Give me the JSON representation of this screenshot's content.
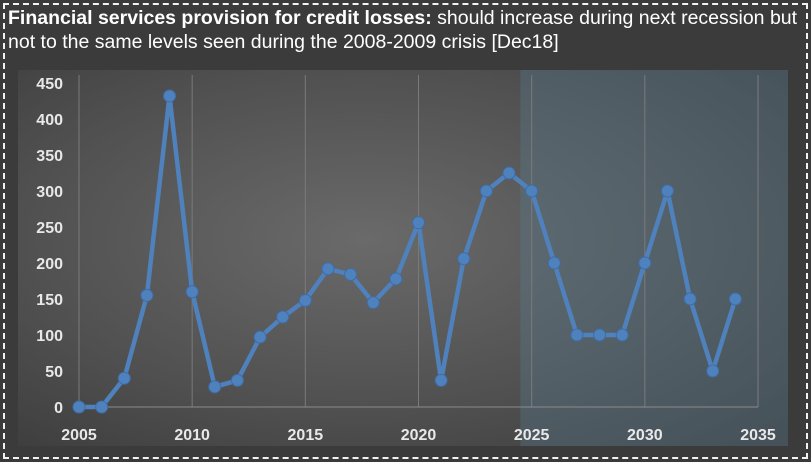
{
  "title_bold": "Financial services provision for credit losses:",
  "title_rest": " should increase during next recession but not to the same levels seen during the 2008-2009 crisis [Dec18]",
  "colors": {
    "line": "#4f81bd",
    "marker": "#4f81bd",
    "forecast_band": "#5a7a8f"
  },
  "chart_data": {
    "type": "line",
    "title": "Financial services provision for credit losses: should increase during next recession but not to the same levels seen during the 2008-2009 crisis [Dec18]",
    "xlabel": "",
    "ylabel": "",
    "xlim": [
      2005,
      2035
    ],
    "ylim": [
      0,
      450
    ],
    "x_ticks": [
      2005,
      2010,
      2015,
      2020,
      2025,
      2030,
      2035
    ],
    "y_ticks": [
      0,
      50,
      100,
      150,
      200,
      250,
      300,
      350,
      400,
      450
    ],
    "grid": "vertical",
    "legend": "none",
    "forecast_region_start": 2024.5,
    "series": [
      {
        "x": [
          2005,
          2006,
          2007,
          2008,
          2009,
          2010,
          2011,
          2012,
          2013,
          2014,
          2015,
          2016,
          2017,
          2018,
          2019,
          2020,
          2021,
          2022,
          2023,
          2024,
          2025,
          2026,
          2027,
          2028,
          2029,
          2030,
          2031,
          2032,
          2033,
          2034
        ],
        "values": [
          0,
          0,
          40,
          155,
          432,
          160,
          28,
          37,
          97,
          125,
          148,
          192,
          184,
          145,
          178,
          256,
          37,
          206,
          300,
          325,
          300,
          200,
          100,
          100,
          100,
          200,
          300,
          150,
          50,
          150
        ]
      }
    ]
  }
}
